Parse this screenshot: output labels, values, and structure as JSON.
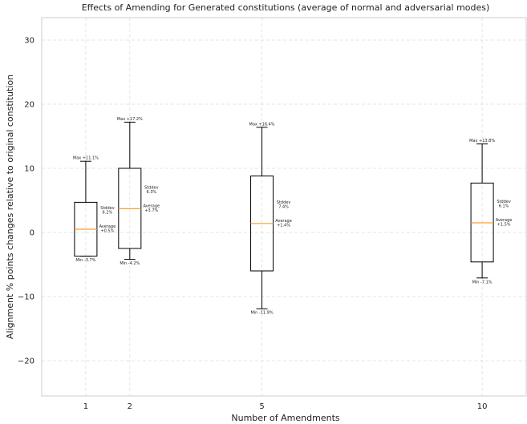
{
  "chart_data": {
    "type": "box",
    "title": "Effects of Amending for Generated constitutions (average of normal and adversarial modes)",
    "xlabel": "Number of Amendments",
    "ylabel": "Alignment % points changes relative to original constitution",
    "xlim": [
      0,
      11
    ],
    "ylim": [
      -25.5,
      33.5
    ],
    "xticks": [
      1,
      2,
      5,
      10
    ],
    "xtick_labels": [
      "1",
      "2",
      "5",
      "10"
    ],
    "yticks": [
      -20,
      -10,
      0,
      10,
      20,
      30
    ],
    "ytick_labels": [
      "−20",
      "−10",
      "0",
      "10",
      "20",
      "30"
    ],
    "grid": true,
    "median_color": "#ff9e2e",
    "box_color": "#000000",
    "grid_color": "#dddddd",
    "boxes": [
      {
        "x": 1,
        "min": -3.7,
        "q1": -3.7,
        "median": 0.5,
        "q3": 4.7,
        "max": 11.1,
        "max_label": "Max +11.1%",
        "min_label": "Min -3.7%",
        "stddev_label": "Stddev",
        "stddev_value": "6.2%",
        "average_label": "Average",
        "average_value": "+0.5%"
      },
      {
        "x": 2,
        "min": -4.2,
        "q1": -2.5,
        "median": 3.7,
        "q3": 10.0,
        "max": 17.2,
        "max_label": "Max +17.2%",
        "min_label": "Min -4.2%",
        "stddev_label": "Stddev",
        "stddev_value": "6.3%",
        "average_label": "Average",
        "average_value": "+3.7%"
      },
      {
        "x": 5,
        "min": -11.9,
        "q1": -6.0,
        "median": 1.4,
        "q3": 8.8,
        "max": 16.4,
        "max_label": "Max +16.4%",
        "min_label": "Min -11.9%",
        "stddev_label": "Stddev",
        "stddev_value": "7.4%",
        "average_label": "Average",
        "average_value": "+1.4%"
      },
      {
        "x": 10,
        "min": -7.1,
        "q1": -4.6,
        "median": 1.5,
        "q3": 7.7,
        "max": 13.8,
        "max_label": "Max +13.8%",
        "min_label": "Min -7.1%",
        "stddev_label": "Stddev",
        "stddev_value": "6.1%",
        "average_label": "Average",
        "average_value": "+1.5%"
      }
    ]
  }
}
